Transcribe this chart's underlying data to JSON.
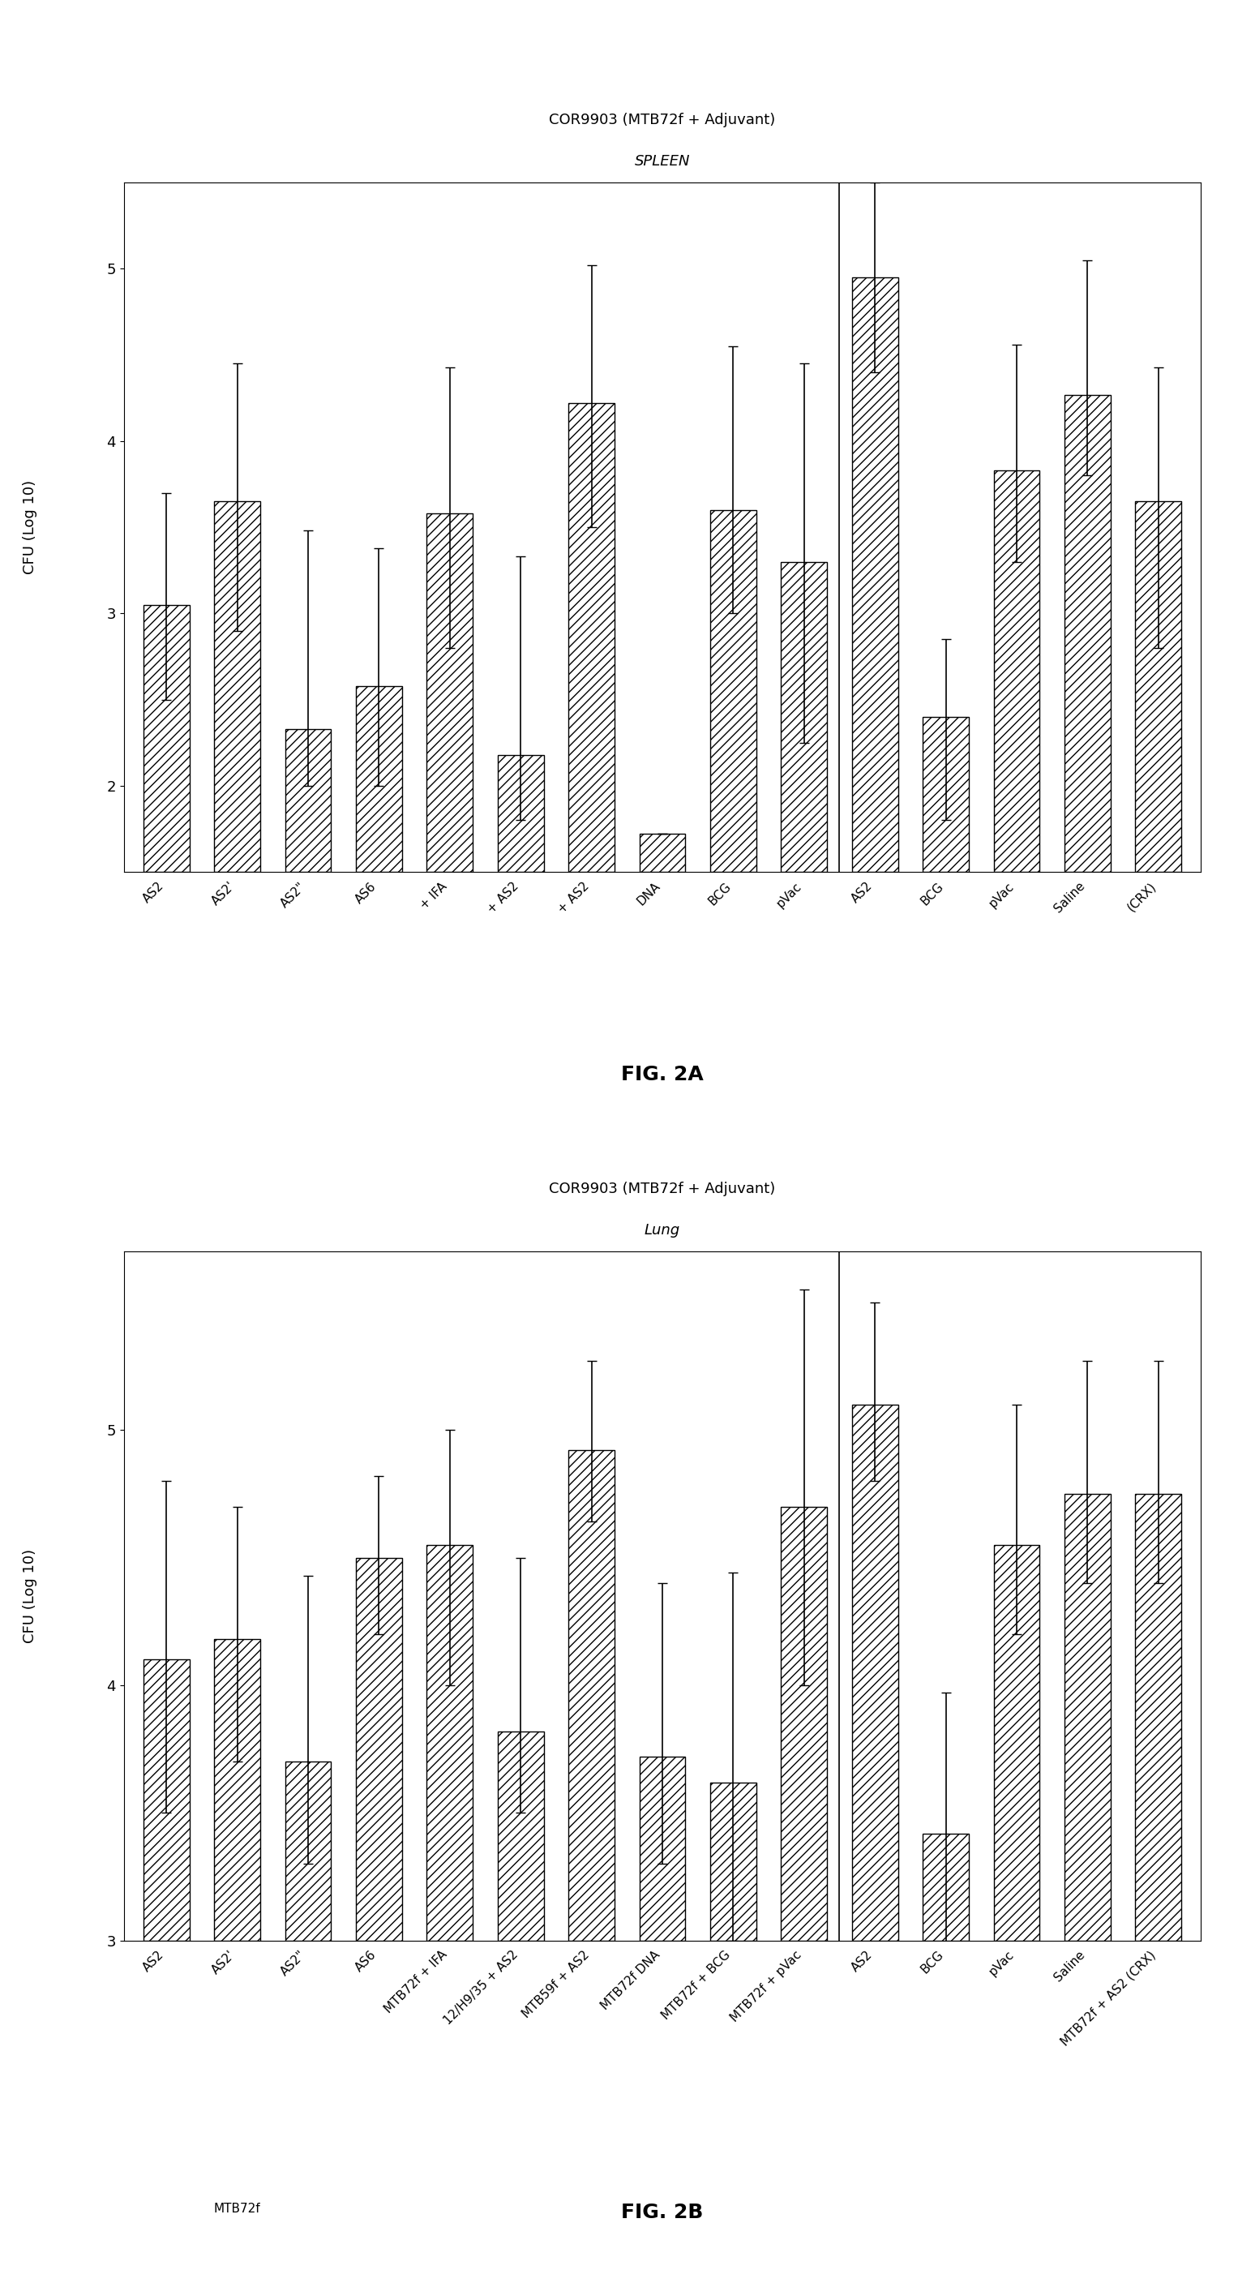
{
  "fig2a": {
    "title_line1": "COR9903 (MTB72f + Adjuvant)",
    "title_line2": "SPLEEN",
    "ylabel": "CFU (Log 10)",
    "ylim": [
      1.5,
      5.5
    ],
    "yticks": [
      2,
      3,
      4,
      5
    ],
    "bars": [
      {
        "label": "AS2",
        "value": 3.05,
        "err_lo": 0.55,
        "err_hi": 0.65
      },
      {
        "label": "AS2'",
        "value": 3.65,
        "err_lo": 0.75,
        "err_hi": 0.8
      },
      {
        "label": "AS2\"",
        "value": 2.33,
        "err_lo": 0.33,
        "err_hi": 1.15
      },
      {
        "label": "AS6",
        "value": 2.58,
        "err_lo": 0.58,
        "err_hi": 0.8
      },
      {
        "label": "+ IFA",
        "value": 3.58,
        "err_lo": 0.78,
        "err_hi": 0.85
      },
      {
        "label": "+ AS2",
        "value": 2.18,
        "err_lo": 0.38,
        "err_hi": 1.15
      },
      {
        "label": "+ AS2",
        "value": 4.22,
        "err_lo": 0.72,
        "err_hi": 0.8
      },
      {
        "label": "DNA",
        "value": 1.72,
        "err_lo": 0.0,
        "err_hi": 0.0
      },
      {
        "label": "BCG",
        "value": 3.6,
        "err_lo": 0.6,
        "err_hi": 0.95
      },
      {
        "label": "pVac",
        "value": 3.3,
        "err_lo": 1.05,
        "err_hi": 1.15
      },
      {
        "label": "AS2",
        "value": 4.95,
        "err_lo": 0.55,
        "err_hi": 0.55
      },
      {
        "label": "BCG",
        "value": 2.4,
        "err_lo": 0.6,
        "err_hi": 0.45
      },
      {
        "label": "pVac",
        "value": 3.83,
        "err_lo": 0.53,
        "err_hi": 0.73
      },
      {
        "label": "Saline",
        "value": 4.27,
        "err_lo": 0.47,
        "err_hi": 0.78
      },
      {
        "label": "(CRX)",
        "value": 3.65,
        "err_lo": 0.85,
        "err_hi": 0.78
      }
    ],
    "divider_after": 10,
    "fig_label": "FIG. 2A"
  },
  "fig2b": {
    "title_line1": "COR9903 (MTB72f + Adjuvant)",
    "title_line2": "Lung",
    "ylabel": "CFU (Log 10)",
    "ylim": [
      3.0,
      5.7
    ],
    "yticks": [
      3,
      4,
      5
    ],
    "bars": [
      {
        "label": "AS2",
        "value": 4.1,
        "err_lo": 0.6,
        "err_hi": 0.7
      },
      {
        "label": "AS2'",
        "value": 4.18,
        "err_lo": 0.48,
        "err_hi": 0.52
      },
      {
        "label": "AS2\"",
        "value": 3.7,
        "err_lo": 0.4,
        "err_hi": 0.73
      },
      {
        "label": "AS6",
        "value": 4.5,
        "err_lo": 0.3,
        "err_hi": 0.32
      },
      {
        "label": "MTB72f + IFA",
        "value": 4.55,
        "err_lo": 0.55,
        "err_hi": 0.45
      },
      {
        "label": "12/H9/35 + AS2",
        "value": 3.82,
        "err_lo": 0.32,
        "err_hi": 0.68
      },
      {
        "label": "MTB59f + AS2",
        "value": 4.92,
        "err_lo": 0.28,
        "err_hi": 0.35
      },
      {
        "label": "MTB72f DNA",
        "value": 3.72,
        "err_lo": 0.42,
        "err_hi": 0.68
      },
      {
        "label": "MTB72f + BCG",
        "value": 3.62,
        "err_lo": 0.62,
        "err_hi": 0.82
      },
      {
        "label": "MTB72f + pVac",
        "value": 4.7,
        "err_lo": 0.7,
        "err_hi": 0.85
      },
      {
        "label": "AS2",
        "value": 5.1,
        "err_lo": 0.3,
        "err_hi": 0.4
      },
      {
        "label": "BCG",
        "value": 3.42,
        "err_lo": 0.62,
        "err_hi": 0.55
      },
      {
        "label": "pVac",
        "value": 4.55,
        "err_lo": 0.35,
        "err_hi": 0.55
      },
      {
        "label": "Saline",
        "value": 4.75,
        "err_lo": 0.35,
        "err_hi": 0.52
      },
      {
        "label": "MTB72f + AS2 (CRX)",
        "value": 4.75,
        "err_lo": 0.35,
        "err_hi": 0.52
      }
    ],
    "divider_after": 10,
    "fig_label": "FIG. 2B",
    "group_label_2a": "MTB72f",
    "group_labels_2b": [
      "MTB72f",
      "MTB72f + AS2 (CRX)"
    ]
  },
  "bar_color": "#ffffff",
  "bar_edgecolor": "#000000",
  "hatch": "///",
  "background_color": "#ffffff"
}
